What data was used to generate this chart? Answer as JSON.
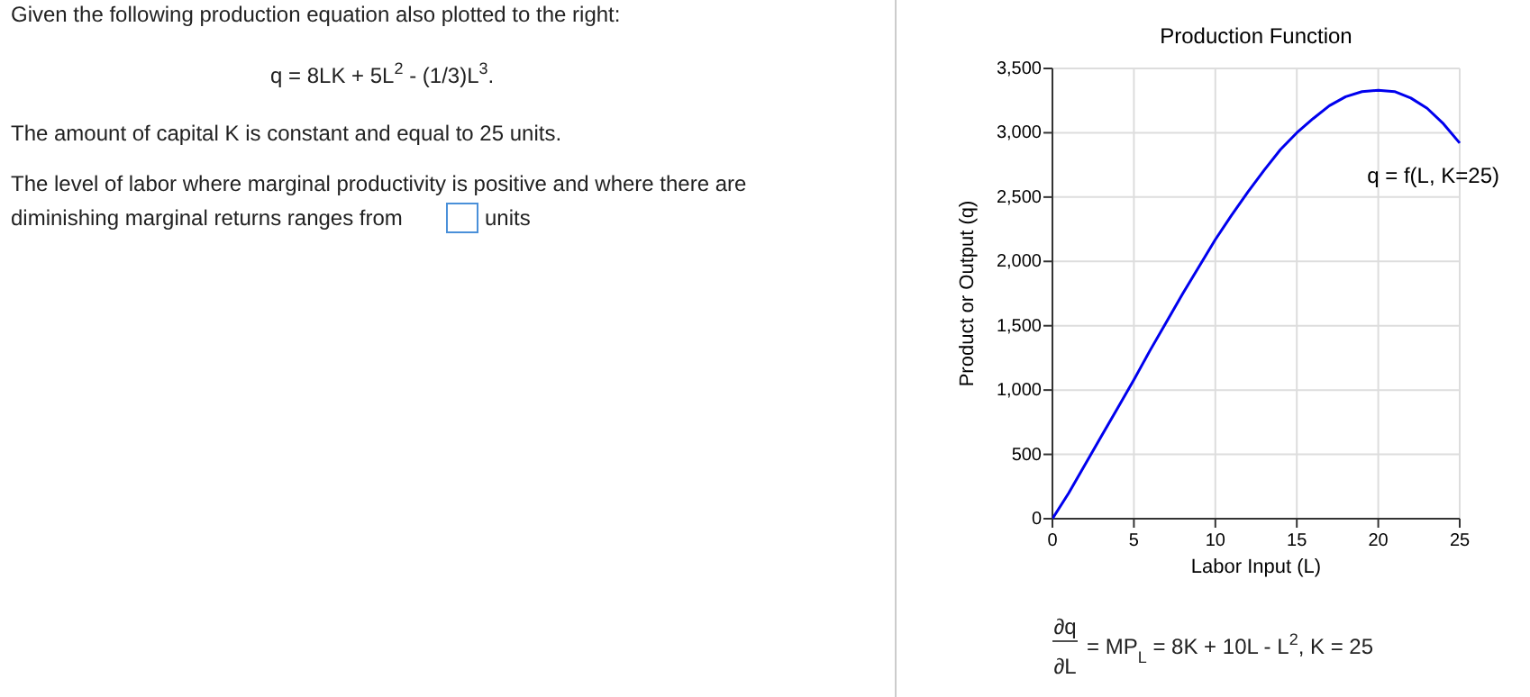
{
  "chart_data": {
    "type": "line",
    "title": "Production Function",
    "xlabel": "Labor Input (L)",
    "ylabel": "Product or Output (q)",
    "x": [
      0,
      1,
      2,
      3,
      4,
      5,
      6,
      7,
      8,
      9,
      10,
      11,
      12,
      13,
      14,
      15,
      16,
      17,
      18,
      19,
      20,
      21,
      22,
      23,
      24,
      25
    ],
    "series": [
      {
        "name": "q = f(L, K=25)",
        "color": "#0000ee",
        "values": [
          0,
          200,
          420,
          640,
          860,
          1080,
          1310,
          1530,
          1750,
          1960,
          2170,
          2360,
          2540,
          2710,
          2870,
          3000,
          3110,
          3210,
          3280,
          3320,
          3330,
          3320,
          3270,
          3190,
          3070,
          2920
        ]
      }
    ],
    "xlim": [
      0,
      25
    ],
    "xticks": [
      0,
      5,
      10,
      15,
      20,
      25
    ],
    "ylim": [
      0,
      3500
    ],
    "yticks": [
      0,
      500,
      {
        "value": 1000,
        "label": "1,000"
      },
      {
        "value": 1500,
        "label": "1,500"
      },
      {
        "value": 2000,
        "label": "2,000"
      },
      {
        "value": 2500,
        "label": "2,500"
      },
      {
        "value": 3000,
        "label": "3,000"
      },
      {
        "value": 3500,
        "label": "3,500"
      }
    ],
    "grid": true,
    "line_style": "solid",
    "marker": "none",
    "annotations": [
      "Given the following production equation also plotted to the right:",
      "q = 8LK + 5L$^{2}$ - (1/3)L$^{3}$.",
      "The amount of capital K is constant and equal to 25 units.",
      "The level of labor where marginal productivity is positive and where there are",
      "diminishing marginal returns ranges from",
      "units",
      "∂q",
      "∂L",
      "= MP$_{L}$ = 8K + 10L - L$^{2}$, K = 25"
    ]
  }
}
